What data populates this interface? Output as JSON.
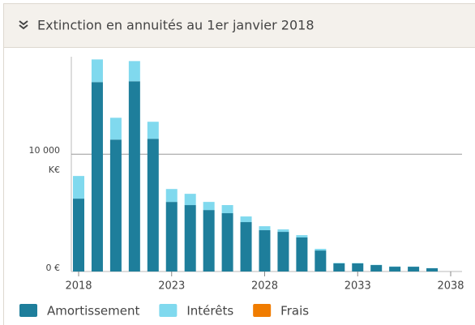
{
  "header": {
    "title": "Extinction en annuités au 1er janvier 2018"
  },
  "chart_data": {
    "type": "stacked_bar",
    "categories": [
      "2018",
      null,
      null,
      null,
      null,
      "2023",
      null,
      null,
      null,
      null,
      "2028",
      null,
      null,
      null,
      null,
      "2033",
      null,
      null,
      null,
      null,
      "2038"
    ],
    "series": [
      {
        "name": "Amortissement",
        "color": "#1e7e9b",
        "values": [
          6210,
          16140,
          11240,
          16210,
          11310,
          5930,
          5660,
          5240,
          4970,
          4210,
          3520,
          3380,
          2900,
          1790,
          690,
          690,
          550,
          410,
          410,
          280,
          0
        ]
      },
      {
        "name": "Intérêts",
        "color": "#80d9ee",
        "values": [
          1930,
          1930,
          1860,
          1720,
          1450,
          1100,
          960,
          690,
          690,
          480,
          340,
          210,
          200,
          140,
          40,
          30,
          20,
          20,
          10,
          10,
          0
        ]
      },
      {
        "name": "Frais",
        "color": "#f07c00",
        "values": [
          0,
          0,
          0,
          0,
          0,
          0,
          0,
          0,
          0,
          0,
          0,
          0,
          0,
          0,
          0,
          0,
          0,
          0,
          0,
          0,
          0
        ]
      }
    ],
    "ylim": [
      0,
      18300
    ],
    "yticks": [
      {
        "value": 0,
        "label": "0 €"
      },
      {
        "value": 10000,
        "label": "10 000"
      }
    ],
    "yunit": "K€",
    "grid": true
  }
}
